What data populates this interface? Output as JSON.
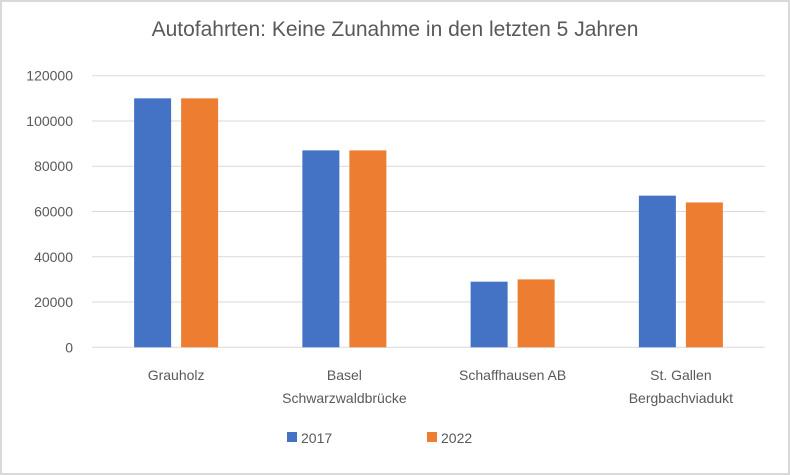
{
  "chart_data": {
    "type": "bar",
    "title": "Autofahrten: Keine Zunahme in den letzten 5 Jahren",
    "categories": [
      [
        "Grauholz"
      ],
      [
        "Basel",
        "Schwarzwaldbrücke"
      ],
      [
        "Schaffhausen AB"
      ],
      [
        "St. Gallen",
        "Bergbachviadukt"
      ]
    ],
    "series": [
      {
        "name": "2017",
        "color": "#4472c4",
        "values": [
          110000,
          87000,
          29000,
          67000
        ]
      },
      {
        "name": "2022",
        "color": "#ed7d31",
        "values": [
          110000,
          87000,
          30000,
          64000
        ]
      }
    ],
    "yticks": [
      "0",
      "20000",
      "40000",
      "60000",
      "80000",
      "100000",
      "120000"
    ],
    "ylim": [
      0,
      120000
    ],
    "xlabel": "",
    "ylabel": "",
    "grid": true,
    "legend": "bottom"
  }
}
